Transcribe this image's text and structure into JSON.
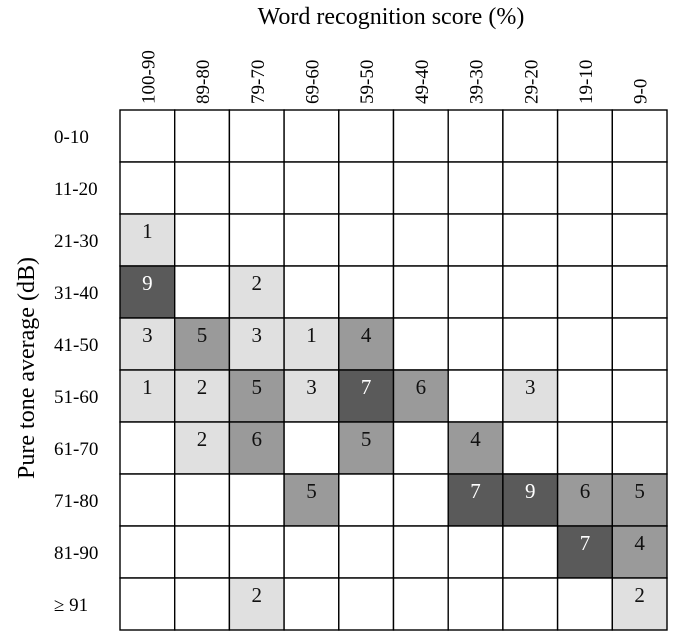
{
  "chart_data": {
    "type": "heatmap",
    "title": "Word recognition score (%)",
    "xlabel": "Word recognition score (%)",
    "ylabel": "Pure tone average (dB)",
    "x_categories": [
      "100-90",
      "89-80",
      "79-70",
      "69-60",
      "59-50",
      "49-40",
      "39-30",
      "29-20",
      "19-10",
      "9-0"
    ],
    "y_categories": [
      "0-10",
      "11-20",
      "21-30",
      "31-40",
      "41-50",
      "51-60",
      "61-70",
      "71-80",
      "81-90",
      "≥ 91"
    ],
    "values": [
      [
        null,
        null,
        null,
        null,
        null,
        null,
        null,
        null,
        null,
        null
      ],
      [
        null,
        null,
        null,
        null,
        null,
        null,
        null,
        null,
        null,
        null
      ],
      [
        1,
        null,
        null,
        null,
        null,
        null,
        null,
        null,
        null,
        null
      ],
      [
        9,
        null,
        2,
        null,
        null,
        null,
        null,
        null,
        null,
        null
      ],
      [
        3,
        5,
        3,
        1,
        4,
        null,
        null,
        null,
        null,
        null
      ],
      [
        1,
        2,
        5,
        3,
        7,
        6,
        null,
        3,
        null,
        null
      ],
      [
        null,
        2,
        6,
        null,
        5,
        null,
        4,
        null,
        null,
        null
      ],
      [
        null,
        null,
        null,
        5,
        null,
        null,
        7,
        9,
        6,
        5
      ],
      [
        null,
        null,
        null,
        null,
        null,
        null,
        null,
        null,
        7,
        4
      ],
      [
        null,
        null,
        2,
        null,
        null,
        null,
        null,
        null,
        null,
        2
      ]
    ],
    "colors": {
      "low": "#e0e0e0",
      "mid": "#9a9a9a",
      "high": "#5a5a5a",
      "grid": "#000000"
    },
    "shade_thresholds": [
      4,
      7
    ],
    "grid": true
  }
}
